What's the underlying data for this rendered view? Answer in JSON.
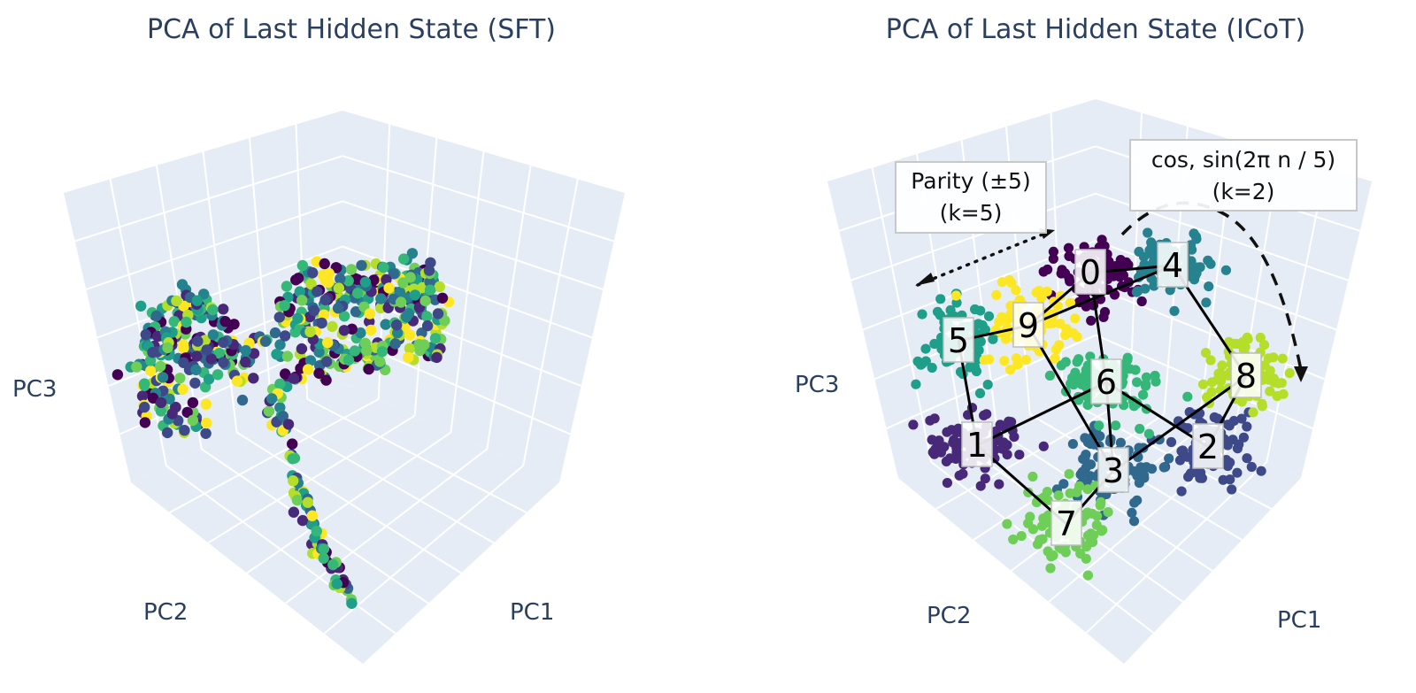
{
  "colors": {
    "pane": "#e5ecf6",
    "grid": "#ffffff",
    "text": "#2a3f5f",
    "viridis": [
      "#440154",
      "#482878",
      "#3e4989",
      "#31688e",
      "#26828e",
      "#1f9e89",
      "#35b779",
      "#6ece58",
      "#b5de2b",
      "#fde725"
    ]
  },
  "chart_data": [
    {
      "type": "scatter",
      "title": "PCA of Last Hidden State (SFT)",
      "xlabel": "PC1",
      "ylabel": "PC2",
      "zlabel": "PC3",
      "grid": true,
      "legend": "none",
      "series_description": "Last-hidden-state embeddings colored by digit 0-9; classes heavily intermixed along a curved manifold"
    },
    {
      "type": "scatter",
      "title": "PCA of Last Hidden State (ICoT)",
      "xlabel": "PC1",
      "ylabel": "PC2",
      "zlabel": "PC3",
      "grid": true,
      "legend": "none",
      "clusters": [
        {
          "label": "0"
        },
        {
          "label": "1"
        },
        {
          "label": "2"
        },
        {
          "label": "3"
        },
        {
          "label": "4"
        },
        {
          "label": "5"
        },
        {
          "label": "6"
        },
        {
          "label": "7"
        },
        {
          "label": "8"
        },
        {
          "label": "9"
        }
      ],
      "edges": [
        [
          "0",
          "4"
        ],
        [
          "0",
          "9"
        ],
        [
          "4",
          "9"
        ],
        [
          "4",
          "8"
        ],
        [
          "0",
          "6"
        ],
        [
          "9",
          "5"
        ],
        [
          "9",
          "3"
        ],
        [
          "5",
          "1"
        ],
        [
          "1",
          "6"
        ],
        [
          "1",
          "7"
        ],
        [
          "6",
          "2"
        ],
        [
          "8",
          "2"
        ],
        [
          "3",
          "7"
        ],
        [
          "3",
          "8"
        ],
        [
          "6",
          "3"
        ]
      ],
      "annotations": [
        {
          "id": "parity",
          "line1": "Parity (±5)",
          "line2": "(k=5)"
        },
        {
          "id": "fourier",
          "line1": "cos, sin(2π n / 5)",
          "line2": "(k=2)"
        }
      ]
    }
  ]
}
